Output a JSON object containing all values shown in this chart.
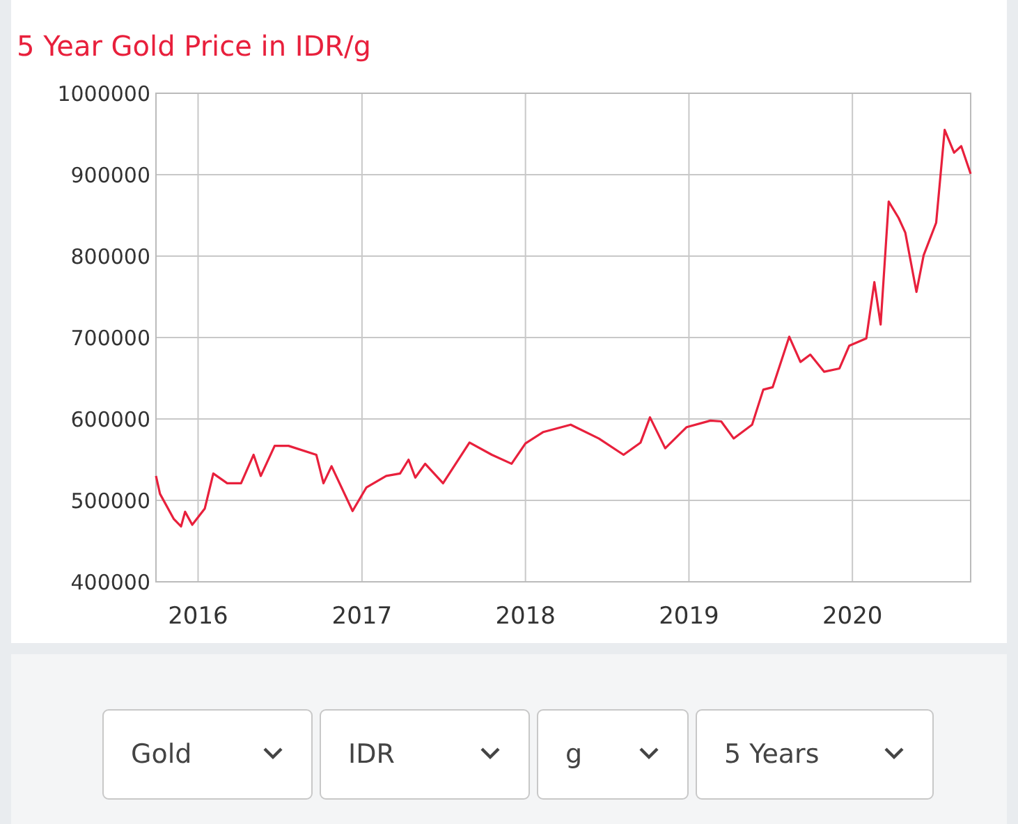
{
  "chart_data": {
    "type": "line",
    "title": "5 Year Gold Price in IDR/g",
    "x": [
      "2015-09-29",
      "2015-10-08",
      "2015-11-08",
      "2015-11-24",
      "2015-12-03",
      "2015-12-19",
      "2016-01-16",
      "2016-02-04",
      "2016-03-06",
      "2016-04-06",
      "2016-05-04",
      "2016-05-20",
      "2016-06-20",
      "2016-07-21",
      "2016-09-21",
      "2016-10-07",
      "2016-10-25",
      "2016-12-11",
      "2017-01-11",
      "2017-02-24",
      "2017-03-27",
      "2017-04-15",
      "2017-04-30",
      "2017-05-22",
      "2017-07-01",
      "2017-08-29",
      "2017-10-18",
      "2017-12-01",
      "2018-01-01",
      "2018-02-10",
      "2018-04-12",
      "2018-06-14",
      "2018-08-08",
      "2018-09-15",
      "2018-10-06",
      "2018-11-09",
      "2018-12-27",
      "2019-02-18",
      "2019-03-14",
      "2019-04-11",
      "2019-05-22",
      "2019-06-16",
      "2019-07-07",
      "2019-08-13",
      "2019-09-07",
      "2019-09-29",
      "2019-10-30",
      "2019-12-03",
      "2019-12-25",
      "2020-02-01",
      "2020-02-19",
      "2020-03-04",
      "2020-03-22",
      "2020-04-13",
      "2020-04-28",
      "2020-05-23",
      "2020-06-08",
      "2020-07-06",
      "2020-07-25",
      "2020-08-15",
      "2020-08-31",
      "2020-09-21"
    ],
    "values": [
      530000,
      508000,
      477000,
      468000,
      486000,
      470000,
      490000,
      533000,
      521000,
      521000,
      556000,
      530000,
      567000,
      567000,
      556000,
      521000,
      542000,
      487000,
      516000,
      530000,
      533000,
      550000,
      528000,
      545000,
      521000,
      571000,
      556000,
      545000,
      570000,
      584000,
      593000,
      576000,
      556000,
      571000,
      602000,
      564000,
      590000,
      598000,
      597000,
      576000,
      593000,
      636000,
      639000,
      701000,
      670000,
      679000,
      658000,
      662000,
      690000,
      699000,
      768000,
      716000,
      867000,
      847000,
      829000,
      756000,
      801000,
      841000,
      955000,
      927000,
      935000,
      901000
    ],
    "color": "#e8203c",
    "xlim": [
      "2015-09-29",
      "2020-09-21"
    ],
    "xticks": [
      "2016",
      "2017",
      "2018",
      "2019",
      "2020"
    ],
    "ylim": [
      400000,
      1000000
    ],
    "yticks": [
      400000,
      500000,
      600000,
      700000,
      800000,
      900000,
      1000000
    ],
    "grid": true,
    "annotations": [
      "Gold",
      "IDR",
      "g",
      "5 Years"
    ]
  }
}
